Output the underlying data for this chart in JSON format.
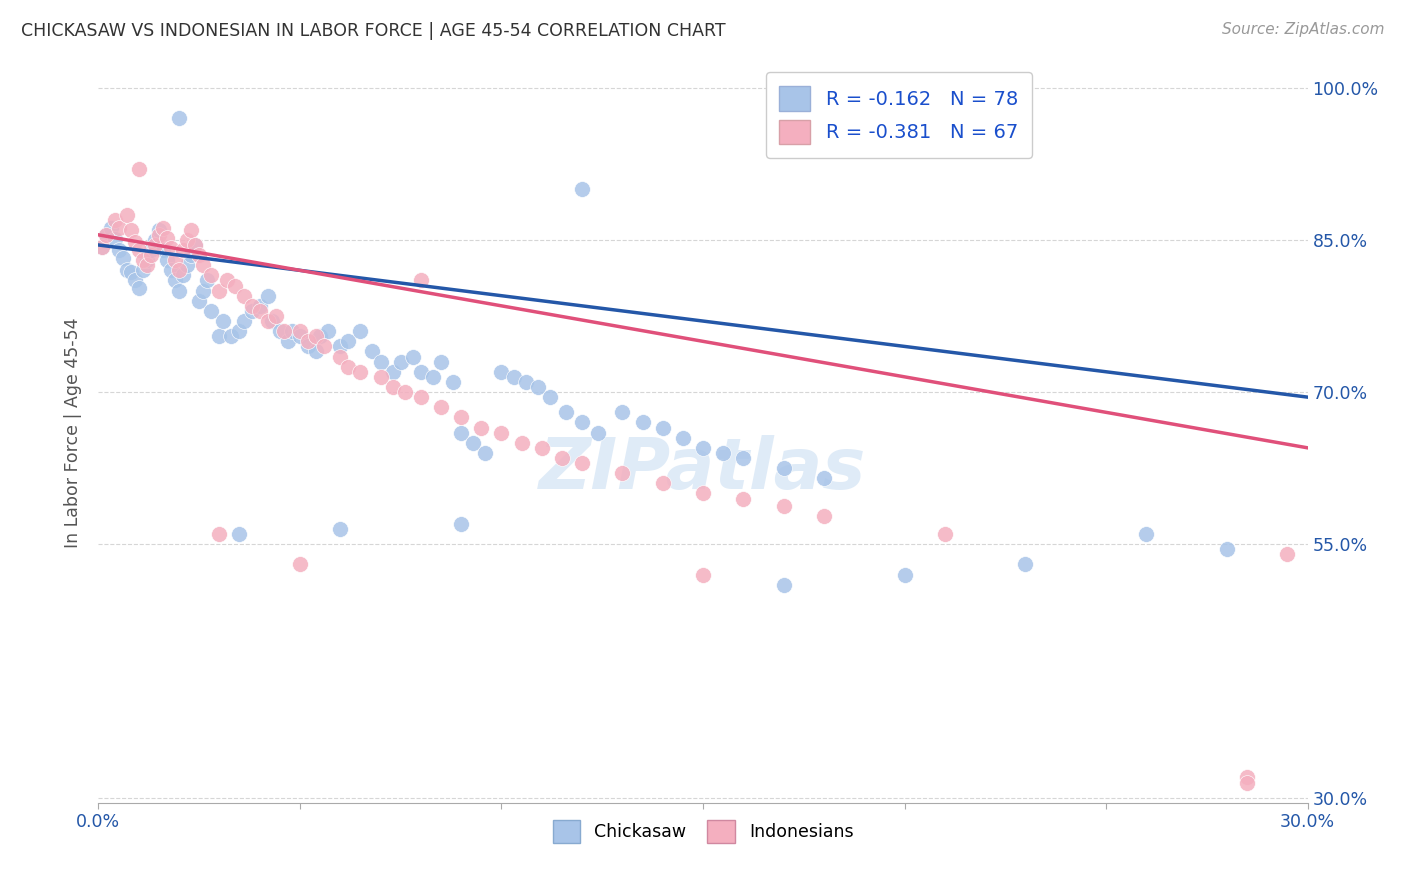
{
  "title": "CHICKASAW VS INDONESIAN IN LABOR FORCE | AGE 45-54 CORRELATION CHART",
  "source": "Source: ZipAtlas.com",
  "ylabel": "In Labor Force | Age 45-54",
  "xlim": [
    0.0,
    0.3
  ],
  "ylim": [
    0.295,
    1.025
  ],
  "x_tick_vals": [
    0.0,
    0.05,
    0.1,
    0.15,
    0.2,
    0.25,
    0.3
  ],
  "x_tick_labels": [
    "0.0%",
    "",
    "",
    "",
    "",
    "",
    "30.0%"
  ],
  "y_tick_vals": [
    0.3,
    0.55,
    0.7,
    0.85,
    1.0
  ],
  "y_tick_labels": [
    "30.0%",
    "55.0%",
    "70.0%",
    "85.0%",
    "100.0%"
  ],
  "chickasaw_R": -0.162,
  "chickasaw_N": 78,
  "indonesian_R": -0.381,
  "indonesian_N": 67,
  "blue_scatter_color": "#a8c4e8",
  "pink_scatter_color": "#f4afbf",
  "blue_line_color": "#2457a8",
  "pink_line_color": "#e0507a",
  "legend_text_color": "#1a4fcc",
  "watermark": "ZIPatlas",
  "chickasaw_x": [
    0.001,
    0.002,
    0.003,
    0.004,
    0.005,
    0.006,
    0.007,
    0.008,
    0.009,
    0.01,
    0.011,
    0.012,
    0.013,
    0.014,
    0.015,
    0.016,
    0.017,
    0.018,
    0.019,
    0.02,
    0.021,
    0.022,
    0.023,
    0.024,
    0.025,
    0.026,
    0.027,
    0.028,
    0.03,
    0.031,
    0.033,
    0.035,
    0.036,
    0.038,
    0.04,
    0.042,
    0.043,
    0.045,
    0.047,
    0.048,
    0.05,
    0.052,
    0.054,
    0.055,
    0.057,
    0.06,
    0.062,
    0.065,
    0.068,
    0.07,
    0.073,
    0.075,
    0.078,
    0.08,
    0.083,
    0.085,
    0.088,
    0.09,
    0.093,
    0.096,
    0.1,
    0.103,
    0.106,
    0.109,
    0.112,
    0.116,
    0.12,
    0.124,
    0.13,
    0.135,
    0.14,
    0.145,
    0.15,
    0.155,
    0.16,
    0.17,
    0.18,
    0.26,
    0.28
  ],
  "chickasaw_y": [
    0.843,
    0.855,
    0.862,
    0.851,
    0.84,
    0.832,
    0.82,
    0.818,
    0.81,
    0.803,
    0.82,
    0.83,
    0.84,
    0.85,
    0.86,
    0.84,
    0.83,
    0.82,
    0.81,
    0.8,
    0.815,
    0.825,
    0.835,
    0.845,
    0.79,
    0.8,
    0.81,
    0.78,
    0.755,
    0.77,
    0.755,
    0.76,
    0.77,
    0.78,
    0.785,
    0.795,
    0.77,
    0.76,
    0.75,
    0.76,
    0.755,
    0.745,
    0.74,
    0.755,
    0.76,
    0.745,
    0.75,
    0.76,
    0.74,
    0.73,
    0.72,
    0.73,
    0.735,
    0.72,
    0.715,
    0.73,
    0.71,
    0.66,
    0.65,
    0.64,
    0.72,
    0.715,
    0.71,
    0.705,
    0.695,
    0.68,
    0.67,
    0.66,
    0.68,
    0.67,
    0.665,
    0.655,
    0.645,
    0.64,
    0.635,
    0.625,
    0.615,
    0.56,
    0.545
  ],
  "chickasaw_extra_x": [
    0.02,
    0.035,
    0.06,
    0.09,
    0.12,
    0.17,
    0.2,
    0.23
  ],
  "chickasaw_extra_y": [
    0.97,
    0.56,
    0.565,
    0.57,
    0.9,
    0.51,
    0.52,
    0.53
  ],
  "indonesian_x": [
    0.001,
    0.002,
    0.004,
    0.005,
    0.007,
    0.008,
    0.009,
    0.01,
    0.011,
    0.012,
    0.013,
    0.014,
    0.015,
    0.016,
    0.017,
    0.018,
    0.019,
    0.02,
    0.021,
    0.022,
    0.023,
    0.024,
    0.025,
    0.026,
    0.028,
    0.03,
    0.032,
    0.034,
    0.036,
    0.038,
    0.04,
    0.042,
    0.044,
    0.046,
    0.05,
    0.052,
    0.054,
    0.056,
    0.06,
    0.062,
    0.065,
    0.07,
    0.073,
    0.076,
    0.08,
    0.085,
    0.09,
    0.095,
    0.1,
    0.105,
    0.11,
    0.115,
    0.12,
    0.13,
    0.14,
    0.15,
    0.16,
    0.17,
    0.18,
    0.21,
    0.285,
    0.295
  ],
  "indonesian_y": [
    0.843,
    0.855,
    0.87,
    0.862,
    0.875,
    0.86,
    0.848,
    0.84,
    0.83,
    0.825,
    0.835,
    0.845,
    0.855,
    0.862,
    0.852,
    0.842,
    0.83,
    0.82,
    0.84,
    0.85,
    0.86,
    0.845,
    0.835,
    0.825,
    0.815,
    0.8,
    0.81,
    0.805,
    0.795,
    0.785,
    0.78,
    0.77,
    0.775,
    0.76,
    0.76,
    0.75,
    0.755,
    0.745,
    0.735,
    0.725,
    0.72,
    0.715,
    0.705,
    0.7,
    0.695,
    0.685,
    0.675,
    0.665,
    0.66,
    0.65,
    0.645,
    0.635,
    0.63,
    0.62,
    0.61,
    0.6,
    0.595,
    0.588,
    0.578,
    0.56,
    0.32,
    0.54
  ],
  "indonesian_extra_x": [
    0.01,
    0.03,
    0.05,
    0.08,
    0.15,
    0.285
  ],
  "indonesian_extra_y": [
    0.92,
    0.56,
    0.53,
    0.81,
    0.52,
    0.315
  ]
}
